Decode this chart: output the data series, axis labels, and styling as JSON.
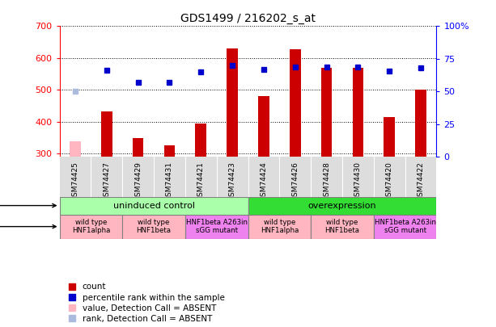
{
  "title": "GDS1499 / 216202_s_at",
  "samples": [
    "GSM74425",
    "GSM74427",
    "GSM74429",
    "GSM74431",
    "GSM74421",
    "GSM74423",
    "GSM74424",
    "GSM74426",
    "GSM74428",
    "GSM74430",
    "GSM74420",
    "GSM74422"
  ],
  "counts": [
    340,
    433,
    350,
    327,
    396,
    630,
    481,
    628,
    570,
    570,
    415,
    502
  ],
  "percentile_ranks": [
    50.5,
    66,
    57,
    57,
    65,
    70,
    67,
    69,
    69,
    69,
    65.5,
    68
  ],
  "absent_count_indices": [
    0
  ],
  "absent_rank_indices": [
    0
  ],
  "ylim_left": [
    290,
    700
  ],
  "ylim_right": [
    0,
    100
  ],
  "right_ticks": [
    0,
    25,
    50,
    75,
    100
  ],
  "right_tick_labels": [
    "0",
    "25",
    "50",
    "75",
    "100%"
  ],
  "left_ticks": [
    300,
    400,
    500,
    600,
    700
  ],
  "protocol_groups": [
    {
      "label": "uninduced control",
      "start": 0,
      "end": 6,
      "color": "#aaffaa"
    },
    {
      "label": "overexpression",
      "start": 6,
      "end": 12,
      "color": "#33dd33"
    }
  ],
  "genotype_groups": [
    {
      "label": "wild type\nHNF1alpha",
      "start": 0,
      "end": 2,
      "color": "#ffb6c1"
    },
    {
      "label": "wild type\nHNF1beta",
      "start": 2,
      "end": 4,
      "color": "#ffb6c1"
    },
    {
      "label": "HNF1beta A263in\nsGG mutant",
      "start": 4,
      "end": 6,
      "color": "#ee82ee"
    },
    {
      "label": "wild type\nHNF1alpha",
      "start": 6,
      "end": 8,
      "color": "#ffb6c1"
    },
    {
      "label": "wild type\nHNF1beta",
      "start": 8,
      "end": 10,
      "color": "#ffb6c1"
    },
    {
      "label": "HNF1beta A263in\nsGG mutant",
      "start": 10,
      "end": 12,
      "color": "#ee82ee"
    }
  ],
  "bar_color_normal": "#cc0000",
  "bar_color_absent": "#ffb6c1",
  "rank_color_normal": "#0000cc",
  "rank_color_absent": "#aabbdd",
  "bar_width": 0.35,
  "legend_items": [
    {
      "label": "count",
      "color": "#cc0000"
    },
    {
      "label": "percentile rank within the sample",
      "color": "#0000cc"
    },
    {
      "label": "value, Detection Call = ABSENT",
      "color": "#ffb6c1"
    },
    {
      "label": "rank, Detection Call = ABSENT",
      "color": "#aabbdd"
    }
  ]
}
